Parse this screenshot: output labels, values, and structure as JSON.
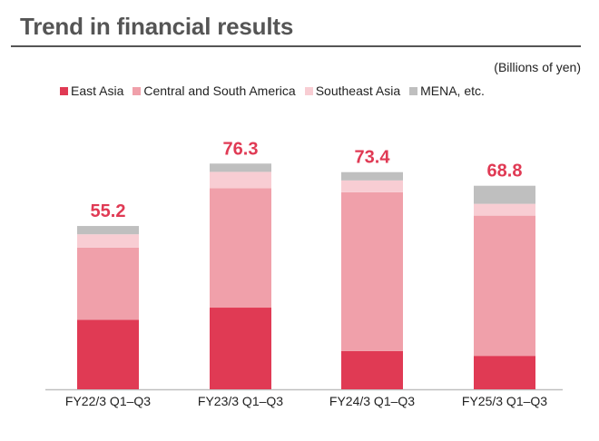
{
  "chart_data": {
    "type": "bar",
    "stacked": true,
    "title": "Trend in financial results",
    "unit_label": "(Billions of yen)",
    "categories": [
      "FY22/3 Q1–Q3",
      "FY23/3 Q1–Q3",
      "FY24/3 Q1–Q3",
      "FY25/3 Q1–Q3"
    ],
    "series": [
      {
        "name": "East Asia",
        "color": "#e03a54",
        "values": [
          23.5,
          27.6,
          12.9,
          11.3
        ]
      },
      {
        "name": "Central and South America",
        "color": "#f0a0aa",
        "values": [
          24.4,
          40.4,
          53.7,
          47.4
        ]
      },
      {
        "name": "Southeast Asia",
        "color": "#f8cdd3",
        "values": [
          4.5,
          5.5,
          4.0,
          4.0
        ]
      },
      {
        "name": "MENA, etc.",
        "color": "#bfbfbf",
        "values": [
          2.8,
          2.8,
          2.8,
          6.1
        ]
      }
    ],
    "totals": [
      "55.2",
      "76.3",
      "73.4",
      "68.8"
    ],
    "xlabel": "",
    "ylabel": "",
    "ylim": [
      0,
      80
    ],
    "grid": false,
    "legend_position": "top"
  }
}
